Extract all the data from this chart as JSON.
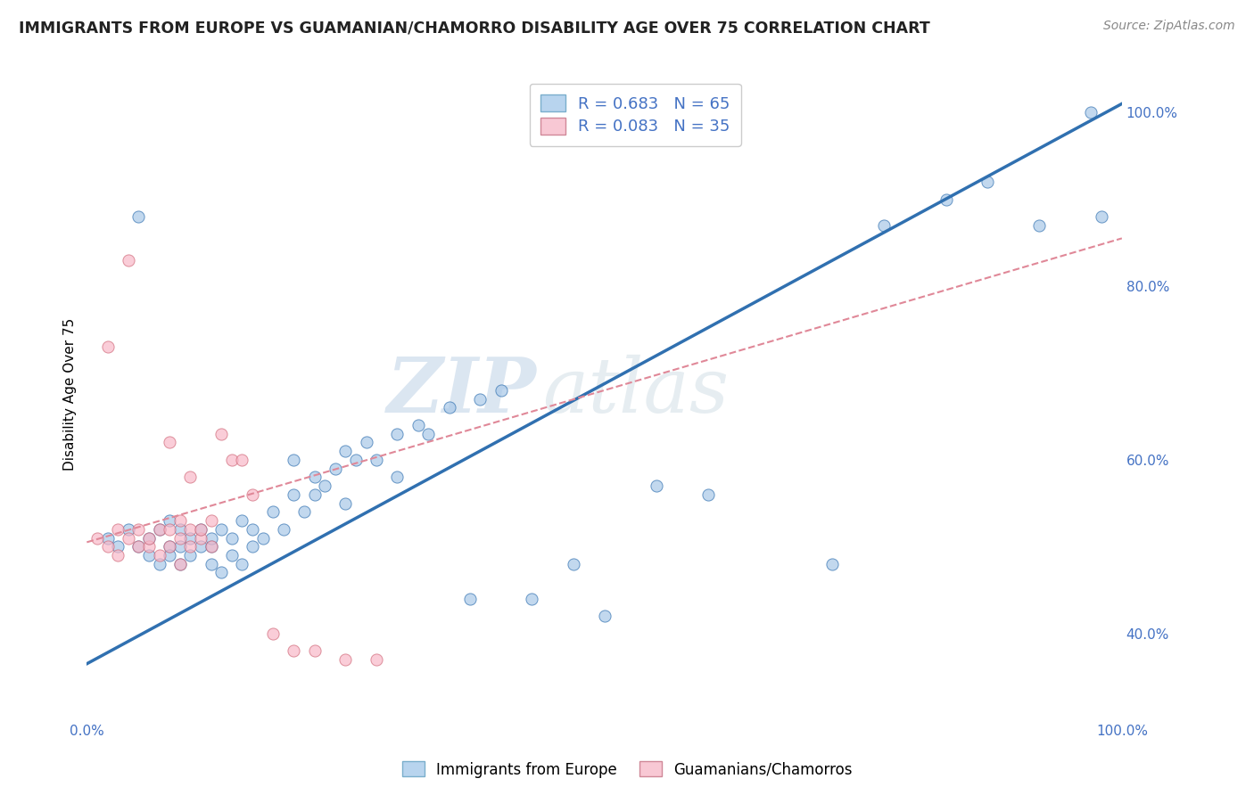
{
  "title": "IMMIGRANTS FROM EUROPE VS GUAMANIAN/CHAMORRO DISABILITY AGE OVER 75 CORRELATION CHART",
  "source": "Source: ZipAtlas.com",
  "ylabel": "Disability Age Over 75",
  "legend_label_1": "Immigrants from Europe",
  "legend_label_2": "Guamanians/Chamorros",
  "r1": 0.683,
  "n1": 65,
  "r2": 0.083,
  "n2": 35,
  "color_blue": "#a8c8e8",
  "color_pink": "#f8b8c8",
  "color_blue_line": "#3070b0",
  "color_pink_line": "#e08898",
  "xlim": [
    0.0,
    1.0
  ],
  "ylim": [
    0.3,
    1.05
  ],
  "yticks": [
    0.4,
    0.6,
    0.8,
    1.0
  ],
  "ytick_labels": [
    "40.0%",
    "60.0%",
    "80.0%",
    "100.0%"
  ],
  "xtick_labels": [
    "0.0%",
    "",
    "",
    "",
    "",
    "100.0%"
  ],
  "blue_line_x0": 0.0,
  "blue_line_y0": 0.365,
  "blue_line_x1": 1.0,
  "blue_line_y1": 1.01,
  "pink_line_x0": 0.0,
  "pink_line_y0": 0.505,
  "pink_line_x1": 1.0,
  "pink_line_y1": 0.855,
  "blue_scatter_x": [
    0.02,
    0.03,
    0.04,
    0.05,
    0.05,
    0.06,
    0.06,
    0.07,
    0.07,
    0.08,
    0.08,
    0.08,
    0.09,
    0.09,
    0.09,
    0.1,
    0.1,
    0.11,
    0.11,
    0.12,
    0.12,
    0.12,
    0.13,
    0.13,
    0.14,
    0.14,
    0.15,
    0.15,
    0.16,
    0.16,
    0.17,
    0.18,
    0.19,
    0.2,
    0.2,
    0.21,
    0.22,
    0.22,
    0.23,
    0.24,
    0.25,
    0.25,
    0.26,
    0.27,
    0.28,
    0.3,
    0.3,
    0.32,
    0.33,
    0.35,
    0.37,
    0.38,
    0.4,
    0.43,
    0.47,
    0.5,
    0.55,
    0.6,
    0.72,
    0.77,
    0.83,
    0.87,
    0.92,
    0.97,
    0.98
  ],
  "blue_scatter_y": [
    0.51,
    0.5,
    0.52,
    0.5,
    0.88,
    0.49,
    0.51,
    0.48,
    0.52,
    0.5,
    0.49,
    0.53,
    0.48,
    0.5,
    0.52,
    0.49,
    0.51,
    0.5,
    0.52,
    0.48,
    0.5,
    0.51,
    0.47,
    0.52,
    0.49,
    0.51,
    0.48,
    0.53,
    0.5,
    0.52,
    0.51,
    0.54,
    0.52,
    0.56,
    0.6,
    0.54,
    0.56,
    0.58,
    0.57,
    0.59,
    0.55,
    0.61,
    0.6,
    0.62,
    0.6,
    0.58,
    0.63,
    0.64,
    0.63,
    0.66,
    0.44,
    0.67,
    0.68,
    0.44,
    0.48,
    0.42,
    0.57,
    0.56,
    0.48,
    0.87,
    0.9,
    0.92,
    0.87,
    1.0,
    0.88
  ],
  "pink_scatter_x": [
    0.01,
    0.02,
    0.02,
    0.03,
    0.03,
    0.04,
    0.04,
    0.05,
    0.05,
    0.06,
    0.06,
    0.07,
    0.07,
    0.08,
    0.08,
    0.08,
    0.09,
    0.09,
    0.09,
    0.1,
    0.1,
    0.1,
    0.11,
    0.11,
    0.12,
    0.12,
    0.13,
    0.14,
    0.15,
    0.16,
    0.18,
    0.2,
    0.22,
    0.25,
    0.28
  ],
  "pink_scatter_y": [
    0.51,
    0.73,
    0.5,
    0.52,
    0.49,
    0.51,
    0.83,
    0.5,
    0.52,
    0.5,
    0.51,
    0.49,
    0.52,
    0.5,
    0.52,
    0.62,
    0.48,
    0.51,
    0.53,
    0.5,
    0.52,
    0.58,
    0.51,
    0.52,
    0.5,
    0.53,
    0.63,
    0.6,
    0.6,
    0.56,
    0.4,
    0.38,
    0.38,
    0.37,
    0.37
  ],
  "watermark_zip": "ZIP",
  "watermark_atlas": "atlas",
  "background_color": "#ffffff",
  "grid_color": "#e0e0e0"
}
